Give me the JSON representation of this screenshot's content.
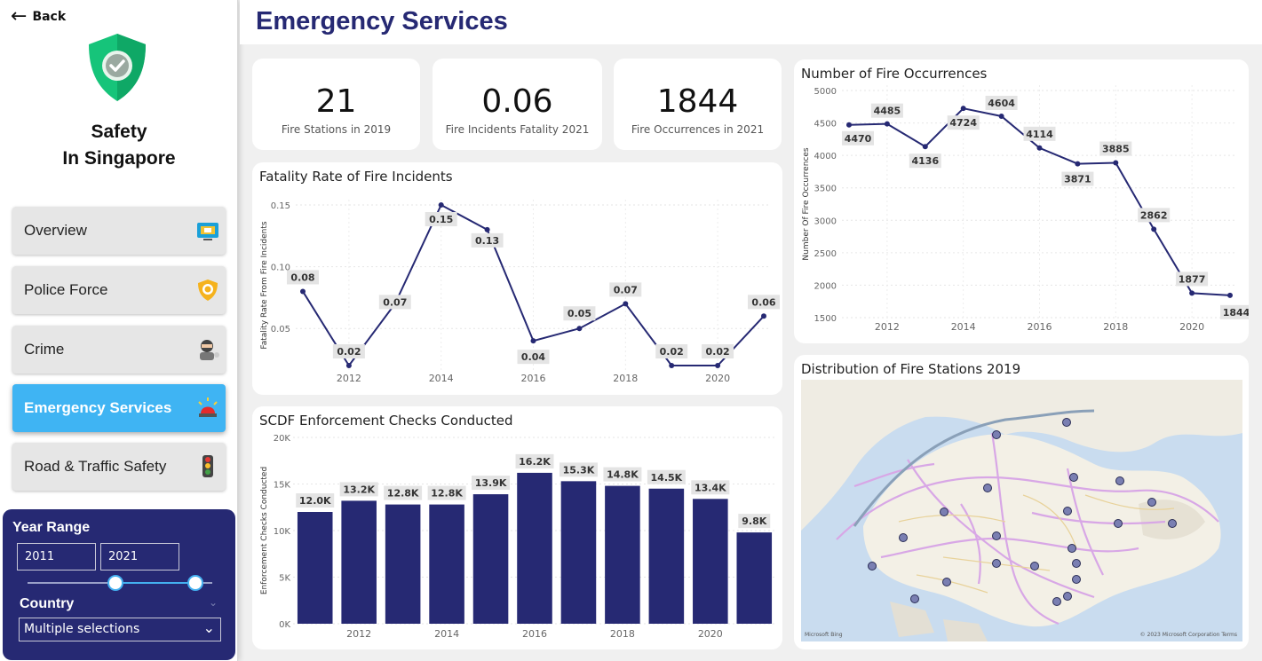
{
  "sidebar": {
    "back_label": "Back",
    "brand_line1": "Safety",
    "brand_line2": "In Singapore",
    "nav": [
      {
        "label": "Overview",
        "icon": "monitor-icon"
      },
      {
        "label": "Police Force",
        "icon": "police-badge-icon"
      },
      {
        "label": "Crime",
        "icon": "robber-icon"
      },
      {
        "label": "Emergency Services",
        "icon": "siren-icon",
        "active": true
      },
      {
        "label": "Road & Traffic Safety",
        "icon": "traffic-light-icon"
      }
    ]
  },
  "filters": {
    "year_range_label": "Year Range",
    "year_from": "2011",
    "year_to": "2021",
    "country_label": "Country",
    "country_value": "Multiple selections"
  },
  "header": {
    "title": "Emergency Services"
  },
  "kpis": [
    {
      "value": "21",
      "label": "Fire Stations in 2019"
    },
    {
      "value": "0.06",
      "label": "Fire Incidents Fatality 2021"
    },
    {
      "value": "1844",
      "label": "Fire Occurrences in 2021"
    }
  ],
  "map": {
    "title": "Distribution of Fire Stations 2019",
    "attribution_left": "Microsoft Bing",
    "attribution_right": "© 2023 Microsoft Corporation  Terms"
  },
  "colors": {
    "navy": "#262973",
    "accent": "#3fb4f3",
    "panel": "#ffffff",
    "background": "#f0f0f0"
  },
  "chart_data": [
    {
      "id": "fatality",
      "type": "line",
      "title": "Fatality Rate of Fire Incidents",
      "ylabel": "Fatality Rate From Fire Incidents",
      "xlabel": "",
      "x": [
        2011,
        2012,
        2013,
        2014,
        2015,
        2016,
        2017,
        2018,
        2019,
        2020,
        2021
      ],
      "values": [
        0.08,
        0.02,
        0.07,
        0.15,
        0.13,
        0.04,
        0.05,
        0.07,
        0.02,
        0.02,
        0.06
      ],
      "labels": [
        "0.08",
        "0.02",
        "0.07",
        "0.15",
        "0.13",
        "0.04",
        "0.05",
        "0.07",
        "0.02",
        "0.02",
        "0.06"
      ],
      "xticks": [
        2012,
        2014,
        2016,
        2018,
        2020
      ],
      "yticks": [
        "0.05",
        "0.10",
        "0.15"
      ],
      "ylim": [
        0.02,
        0.15
      ],
      "grid": true,
      "color": "#262973"
    },
    {
      "id": "occurrences",
      "type": "line",
      "title": "Number of Fire Occurrences",
      "ylabel": "Number Of Fire Occurrences",
      "xlabel": "",
      "x": [
        2011,
        2012,
        2013,
        2014,
        2015,
        2016,
        2017,
        2018,
        2019,
        2020,
        2021
      ],
      "values": [
        4470,
        4485,
        4136,
        4724,
        4604,
        4114,
        3871,
        3885,
        2862,
        1877,
        1844
      ],
      "labels": [
        "4470",
        "4485",
        "4136",
        "4724",
        "4604",
        "4114",
        "3871",
        "3885",
        "2862",
        "1877",
        "1844"
      ],
      "xticks": [
        2012,
        2014,
        2016,
        2018,
        2020
      ],
      "yticks": [
        "1500",
        "2000",
        "2500",
        "3000",
        "3500",
        "4000",
        "4500",
        "5000"
      ],
      "ylim": [
        1500,
        5000
      ],
      "grid": true,
      "color": "#262973"
    },
    {
      "id": "checks",
      "type": "bar",
      "title": "SCDF Enforcement Checks Conducted",
      "ylabel": "Enforcement Checks Conducted",
      "xlabel": "",
      "categories": [
        "2011",
        "2012",
        "2013",
        "2014",
        "2015",
        "2016",
        "2017",
        "2018",
        "2019",
        "2020",
        "2021"
      ],
      "values": [
        12000,
        13200,
        12800,
        12800,
        13900,
        16200,
        15300,
        14800,
        14500,
        13400,
        9800
      ],
      "labels": [
        "12.0K",
        "13.2K",
        "12.8K",
        "12.8K",
        "13.9K",
        "16.2K",
        "15.3K",
        "14.8K",
        "14.5K",
        "13.4K",
        "9.8K"
      ],
      "xticks": [
        "2012",
        "2014",
        "2016",
        "2018",
        "2020"
      ],
      "yticks": [
        "0K",
        "5K",
        "10K",
        "15K",
        "20K"
      ],
      "ylim": [
        0,
        20000
      ],
      "grid": true,
      "color": "#262973"
    }
  ]
}
